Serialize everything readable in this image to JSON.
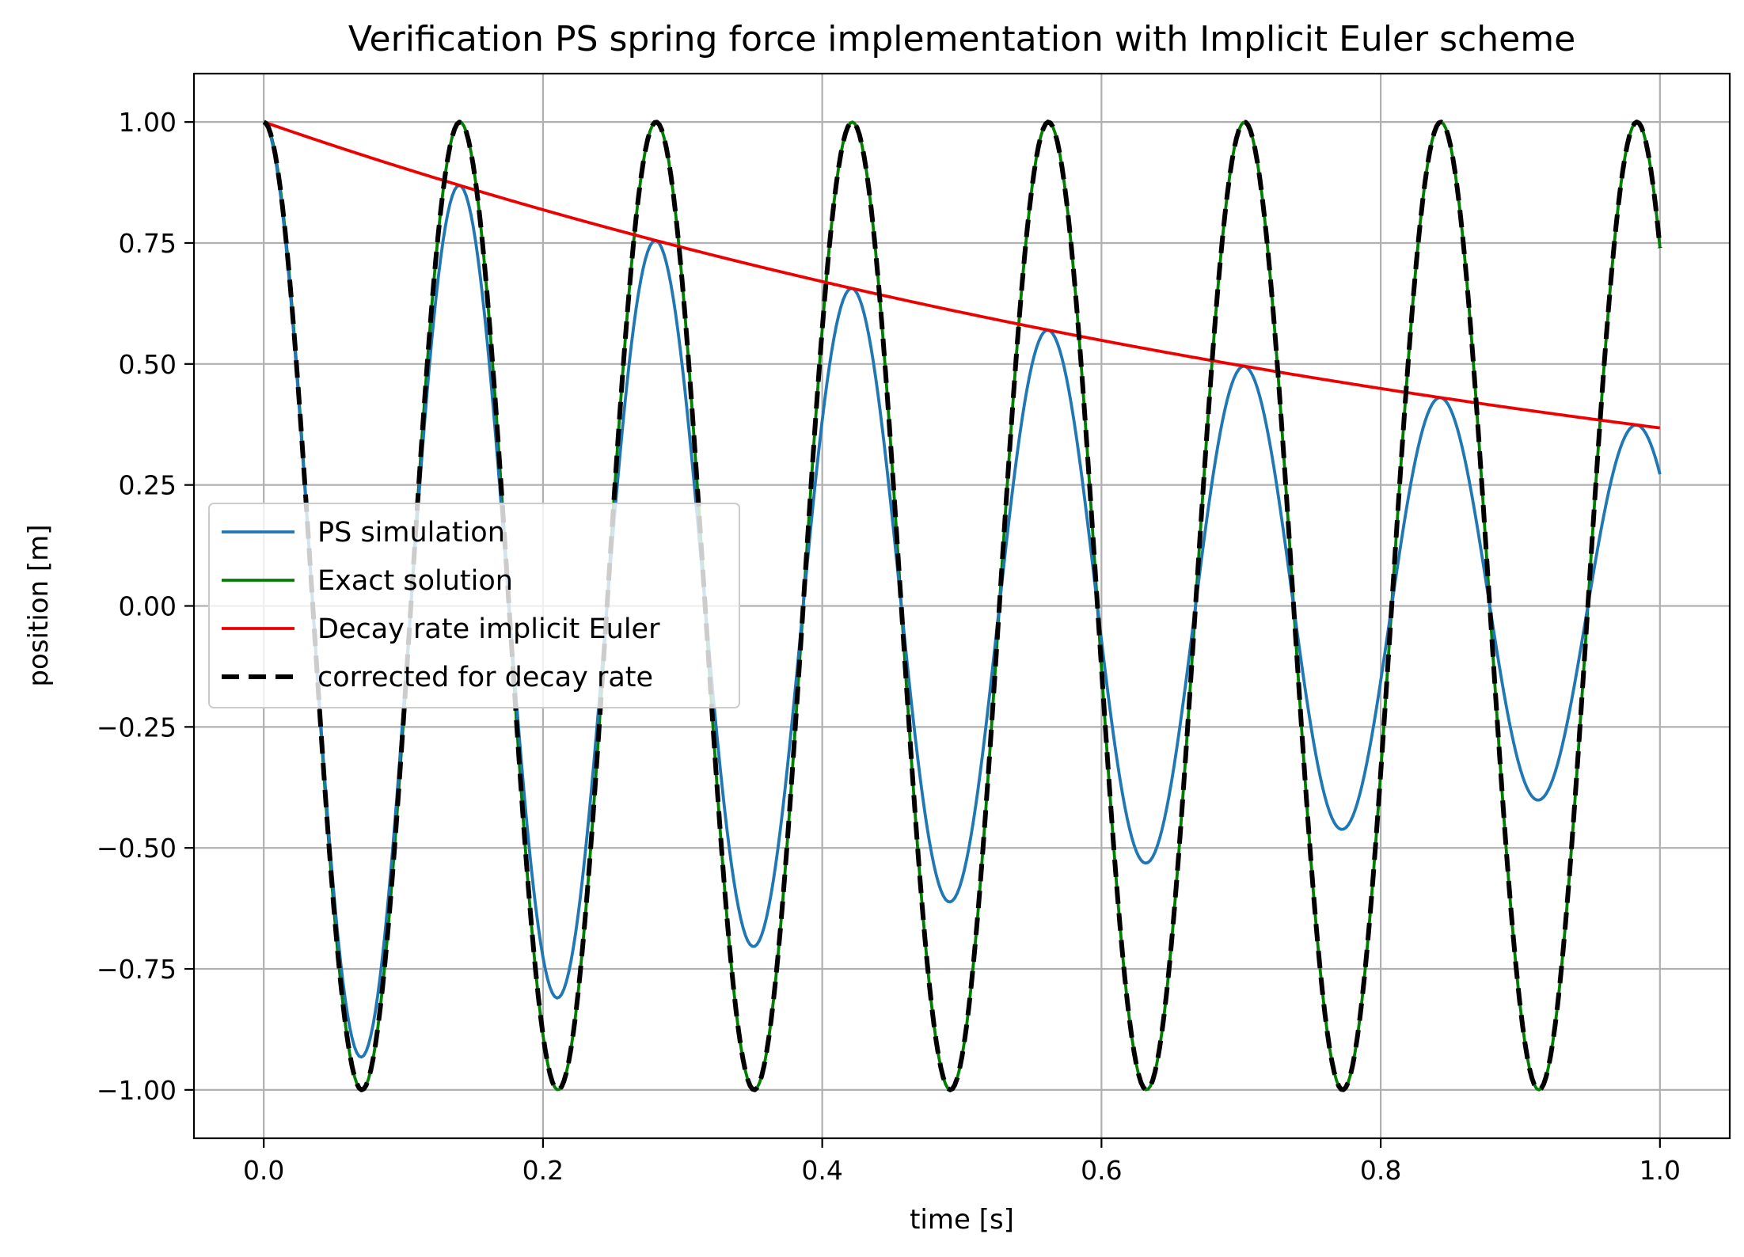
{
  "chart_data": {
    "type": "line",
    "title": "Verification PS spring force implementation with Implicit Euler scheme",
    "xlabel": "time [s]",
    "ylabel": "position [m]",
    "xlim": [
      -0.05,
      1.05
    ],
    "ylim": [
      -1.1,
      1.1
    ],
    "grid": true,
    "legend_position": "center-left",
    "x_ticks": [
      0.0,
      0.2,
      0.4,
      0.6,
      0.8,
      1.0
    ],
    "x_tick_labels": [
      "0.0",
      "0.2",
      "0.4",
      "0.6",
      "0.8",
      "1.0"
    ],
    "y_ticks": [
      1.0,
      0.75,
      0.5,
      0.25,
      0.0,
      -0.25,
      -0.5,
      -0.75,
      -1.0
    ],
    "y_tick_labels": [
      "1.00",
      "0.75",
      "0.50",
      "0.25",
      "0.00",
      "−0.25",
      "−0.50",
      "−0.75",
      "−1.00"
    ],
    "model": {
      "period": 0.1405,
      "decay_rate": 1.0,
      "samples": 600,
      "t_start": 0.0,
      "t_end": 1.0
    },
    "series": [
      {
        "name": "PS simulation",
        "color": "#1f77b4",
        "style": "solid",
        "formula": "exp(-decay_rate*t)*cos(2*pi*t/period)"
      },
      {
        "name": "Exact solution",
        "color": "#008000",
        "style": "solid",
        "formula": "cos(2*pi*t/period)"
      },
      {
        "name": "Decay rate implicit Euler",
        "color": "#ee0000",
        "style": "solid",
        "formula": "exp(-decay_rate*t)"
      },
      {
        "name": "corrected for decay rate",
        "color": "#000000",
        "style": "dashed",
        "formula": "cos(2*pi*t/period)"
      }
    ]
  }
}
